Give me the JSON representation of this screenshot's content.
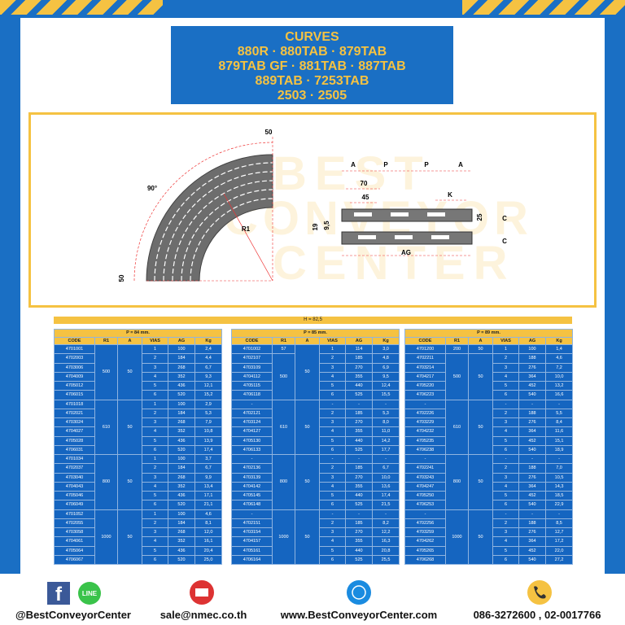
{
  "header": {
    "title": "CURVES",
    "lines": [
      "880R · 880TAB · 879TAB",
      "879TAB GF · 881TAB · 887TAB",
      "889TAB · 7253TAB",
      "2503 · 2505"
    ]
  },
  "diagram": {
    "watermark": [
      "BEST",
      "CONVEYOR",
      "CENTER"
    ],
    "labels": [
      "50",
      "90°",
      "R1",
      "50",
      "A",
      "P",
      "P",
      "A",
      "70",
      "45",
      "K",
      "19",
      "9,5",
      "25",
      "C",
      "C",
      "AG"
    ]
  },
  "table_section": {
    "height_label": "H = 82,5",
    "columns": [
      "CODE",
      "R1",
      "A",
      "VIAS",
      "AG",
      "Kg"
    ],
    "tables": [
      {
        "p_label": "P = 84 mm.",
        "groups": [
          {
            "r1": "500",
            "a": "50",
            "rows": [
              [
                "4701001",
                "1",
                "100",
                "2,4"
              ],
              [
                "4702003",
                "2",
                "184",
                "4,4"
              ],
              [
                "4703006",
                "3",
                "268",
                "6,7"
              ],
              [
                "4704009",
                "4",
                "352",
                "9,3"
              ],
              [
                "4705012",
                "5",
                "436",
                "12,1"
              ],
              [
                "4706015",
                "6",
                "520",
                "15,2"
              ]
            ]
          },
          {
            "r1": "610",
            "a": "50",
            "rows": [
              [
                "4701018",
                "1",
                "100",
                "2,9"
              ],
              [
                "4702021",
                "2",
                "184",
                "5,3"
              ],
              [
                "4703024",
                "3",
                "268",
                "7,9"
              ],
              [
                "4704027",
                "4",
                "352",
                "10,8"
              ],
              [
                "4705028",
                "5",
                "436",
                "13,9"
              ],
              [
                "4706031",
                "6",
                "520",
                "17,4"
              ]
            ]
          },
          {
            "r1": "800",
            "a": "50",
            "rows": [
              [
                "4701034",
                "1",
                "100",
                "3,7"
              ],
              [
                "4702037",
                "2",
                "184",
                "6,7"
              ],
              [
                "4703040",
                "3",
                "268",
                "9,9"
              ],
              [
                "4704043",
                "4",
                "352",
                "13,4"
              ],
              [
                "4705046",
                "5",
                "436",
                "17,1"
              ],
              [
                "4706049",
                "6",
                "520",
                "21,1"
              ]
            ]
          },
          {
            "r1": "1000",
            "a": "50",
            "rows": [
              [
                "4701052",
                "1",
                "100",
                "4,6"
              ],
              [
                "4702055",
                "2",
                "184",
                "8,1"
              ],
              [
                "4703058",
                "3",
                "268",
                "12,0"
              ],
              [
                "4704061",
                "4",
                "352",
                "16,1"
              ],
              [
                "4705064",
                "5",
                "436",
                "20,4"
              ],
              [
                "4706067",
                "6",
                "520",
                "25,0"
              ]
            ]
          }
        ]
      },
      {
        "p_label": "P = 85 mm.",
        "groups": [
          {
            "r1": "500",
            "a": "50",
            "first_row_r1": "57",
            "rows": [
              [
                "4701002",
                "1",
                "114",
                "3,0"
              ],
              [
                "4702107",
                "2",
                "185",
                "4,8"
              ],
              [
                "4703109",
                "3",
                "270",
                "6,9"
              ],
              [
                "4704112",
                "4",
                "355",
                "9,5"
              ],
              [
                "4705115",
                "5",
                "440",
                "12,4"
              ],
              [
                "4706118",
                "6",
                "525",
                "15,5"
              ]
            ]
          },
          {
            "r1": "610",
            "a": "50",
            "rows": [
              [
                "-",
                "-",
                "-",
                "-"
              ],
              [
                "4702121",
                "2",
                "185",
                "5,3"
              ],
              [
                "4703124",
                "3",
                "270",
                "8,0"
              ],
              [
                "4704127",
                "4",
                "355",
                "11,0"
              ],
              [
                "4705130",
                "5",
                "440",
                "14,2"
              ],
              [
                "4706133",
                "6",
                "525",
                "17,7"
              ]
            ]
          },
          {
            "r1": "800",
            "a": "50",
            "rows": [
              [
                "-",
                "-",
                "-",
                "-"
              ],
              [
                "4702136",
                "2",
                "185",
                "6,7"
              ],
              [
                "4703139",
                "3",
                "270",
                "10,0"
              ],
              [
                "4704142",
                "4",
                "355",
                "13,6"
              ],
              [
                "4705145",
                "5",
                "440",
                "17,4"
              ],
              [
                "4706148",
                "6",
                "525",
                "21,5"
              ]
            ]
          },
          {
            "r1": "1000",
            "a": "50",
            "rows": [
              [
                "-",
                "-",
                "-",
                "-"
              ],
              [
                "4702151",
                "2",
                "185",
                "8,2"
              ],
              [
                "4703154",
                "3",
                "270",
                "12,2"
              ],
              [
                "4704157",
                "4",
                "355",
                "16,3"
              ],
              [
                "4705161",
                "5",
                "440",
                "20,8"
              ],
              [
                "4706164",
                "6",
                "525",
                "25,5"
              ]
            ]
          }
        ]
      },
      {
        "p_label": "P = 89 mm.",
        "groups": [
          {
            "r1": "500",
            "a": "50",
            "first_row_r1": "200",
            "first_row_a": "50",
            "rows": [
              [
                "4701200",
                "1",
                "100",
                "1,4"
              ],
              [
                "4702211",
                "2",
                "188",
                "4,6"
              ],
              [
                "4703214",
                "3",
                "276",
                "7,2"
              ],
              [
                "4704217",
                "4",
                "364",
                "10,0"
              ],
              [
                "4705220",
                "5",
                "452",
                "13,2"
              ],
              [
                "4706223",
                "6",
                "540",
                "16,6"
              ]
            ]
          },
          {
            "r1": "610",
            "a": "50",
            "rows": [
              [
                "-",
                "-",
                "-",
                "-"
              ],
              [
                "4702226",
                "2",
                "188",
                "5,5"
              ],
              [
                "4703229",
                "3",
                "276",
                "8,4"
              ],
              [
                "4704232",
                "4",
                "364",
                "11,6"
              ],
              [
                "4705235",
                "5",
                "452",
                "15,1"
              ],
              [
                "4706238",
                "6",
                "540",
                "18,9"
              ]
            ]
          },
          {
            "r1": "800",
            "a": "50",
            "rows": [
              [
                "-",
                "-",
                "-",
                "-"
              ],
              [
                "4702241",
                "2",
                "188",
                "7,0"
              ],
              [
                "4703243",
                "3",
                "276",
                "10,5"
              ],
              [
                "4704247",
                "4",
                "364",
                "14,3"
              ],
              [
                "4705250",
                "5",
                "452",
                "18,5"
              ],
              [
                "4706253",
                "6",
                "540",
                "22,9"
              ]
            ]
          },
          {
            "r1": "1000",
            "a": "50",
            "rows": [
              [
                "-",
                "-",
                "-",
                "-"
              ],
              [
                "4702256",
                "2",
                "188",
                "8,5"
              ],
              [
                "4703259",
                "3",
                "276",
                "12,7"
              ],
              [
                "4704262",
                "4",
                "364",
                "17,2"
              ],
              [
                "4705265",
                "5",
                "452",
                "22,0"
              ],
              [
                "4706268",
                "6",
                "540",
                "27,2"
              ]
            ]
          }
        ]
      }
    ]
  },
  "footer": {
    "facebook_icon": "f",
    "line_icon": "LINE",
    "social": "@BestConveyorCenter",
    "email": "sale@nmec.co.th",
    "website": "www.BestConveyorCenter.com",
    "phone": "086-3272600 , 02-0017766"
  }
}
